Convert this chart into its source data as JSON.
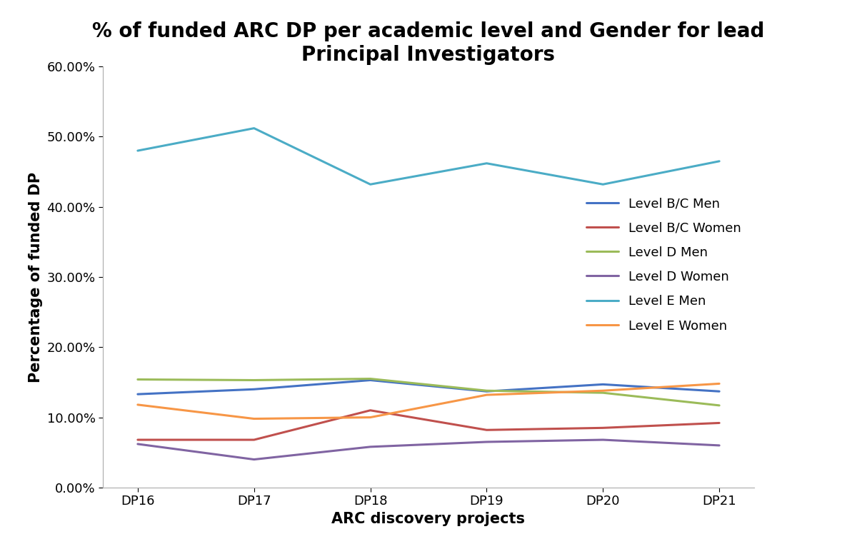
{
  "title_line1": "% of funded ARC DP per academic level and Gender for lead",
  "title_line2": "Principal Investigators",
  "xlabel": "ARC discovery projects",
  "ylabel": "Percentage of funded DP",
  "categories": [
    "DP16",
    "DP17",
    "DP18",
    "DP19",
    "DP20",
    "DP21"
  ],
  "series": [
    {
      "name": "Level B/C Men",
      "values": [
        0.133,
        0.14,
        0.153,
        0.137,
        0.147,
        0.137
      ],
      "color": "#4472C4"
    },
    {
      "name": "Level B/C Women",
      "values": [
        0.068,
        0.068,
        0.11,
        0.082,
        0.085,
        0.092
      ],
      "color": "#C0504D"
    },
    {
      "name": "Level D Men",
      "values": [
        0.154,
        0.153,
        0.155,
        0.138,
        0.135,
        0.117
      ],
      "color": "#9BBB59"
    },
    {
      "name": "Level D Women",
      "values": [
        0.062,
        0.04,
        0.058,
        0.065,
        0.068,
        0.06
      ],
      "color": "#8064A2"
    },
    {
      "name": "Level E Men",
      "values": [
        0.48,
        0.512,
        0.432,
        0.462,
        0.432,
        0.465
      ],
      "color": "#4BACC6"
    },
    {
      "name": "Level E Women",
      "values": [
        0.118,
        0.098,
        0.1,
        0.132,
        0.138,
        0.148
      ],
      "color": "#F79646"
    }
  ],
  "ylim": [
    0.0,
    0.6
  ],
  "yticks": [
    0.0,
    0.1,
    0.2,
    0.3,
    0.4,
    0.5,
    0.6
  ],
  "ytick_labels": [
    "0.00%",
    "10.00%",
    "20.00%",
    "30.00%",
    "40.00%",
    "50.00%",
    "60.00%"
  ],
  "title_fontsize": 20,
  "axis_label_fontsize": 15,
  "tick_fontsize": 13,
  "legend_fontsize": 13,
  "line_width": 2.2,
  "background_color": "#FFFFFF",
  "figsize": [
    12.0,
    7.76
  ]
}
